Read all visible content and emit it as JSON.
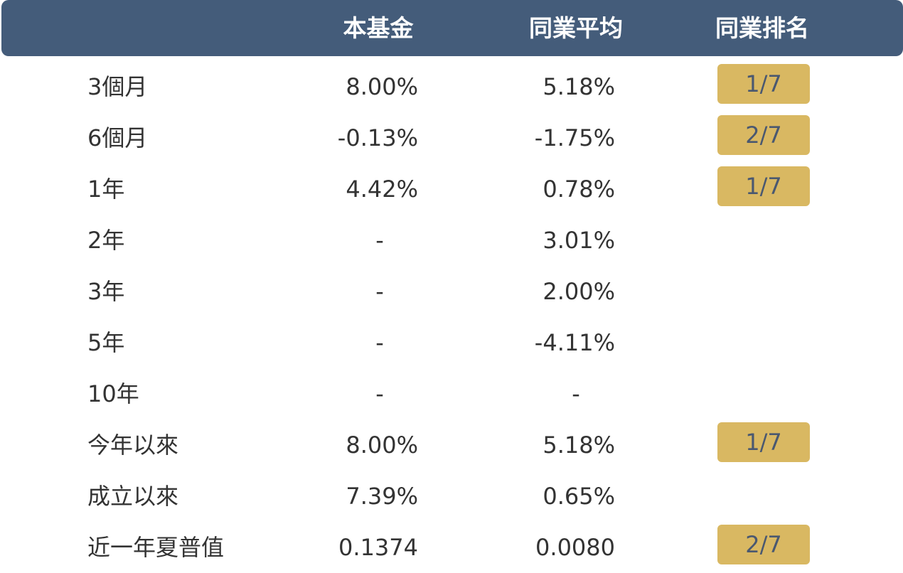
{
  "header": {
    "fund": "本基金",
    "peer_average": "同業平均",
    "peer_rank": "同業排名"
  },
  "rows": [
    {
      "label": "3個月",
      "fund": "8.00%",
      "avg": "5.18%",
      "rank": "1/7"
    },
    {
      "label": "6個月",
      "fund": "-0.13%",
      "avg": "-1.75%",
      "rank": "2/7"
    },
    {
      "label": "1年",
      "fund": "4.42%",
      "avg": "0.78%",
      "rank": "1/7"
    },
    {
      "label": "2年",
      "fund": "-",
      "avg": "3.01%",
      "rank": ""
    },
    {
      "label": "3年",
      "fund": "-",
      "avg": "2.00%",
      "rank": ""
    },
    {
      "label": "5年",
      "fund": "-",
      "avg": "-4.11%",
      "rank": ""
    },
    {
      "label": "10年",
      "fund": "-",
      "avg": "-",
      "rank": ""
    },
    {
      "label": "今年以來",
      "fund": "8.00%",
      "avg": "5.18%",
      "rank": "1/7"
    },
    {
      "label": "成立以來",
      "fund": "7.39%",
      "avg": "0.65%",
      "rank": ""
    },
    {
      "label": "近一年夏普值",
      "fund": "0.1374",
      "avg": "0.0080",
      "rank": "2/7"
    }
  ],
  "colors": {
    "header_bg": "#445c7a",
    "header_text": "#ffffff",
    "rank_badge_bg": "#d9b862",
    "rank_badge_text": "#4a5870",
    "body_text": "#333333"
  }
}
